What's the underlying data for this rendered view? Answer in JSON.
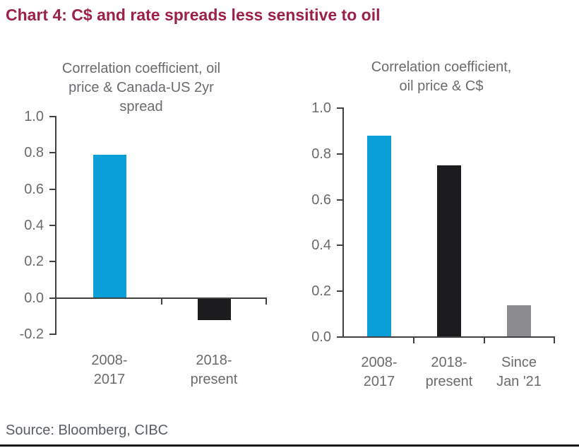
{
  "page": {
    "title": "Chart 4: C$ and rate spreads less sensitive to oil",
    "source": "Source: Bloomberg, CIBC"
  },
  "colors": {
    "headline": "#9b2145",
    "chart_text": "#6a6b6e",
    "axis": "#414144",
    "bar_blue": "#0a9fd9",
    "bar_black": "#1c1c1e",
    "bar_gray": "#8c8c8e",
    "bottom_rule": "#161616"
  },
  "chart_data": [
    {
      "type": "bar",
      "title": "Correlation coefficient, oil price & Canada-US 2yr spread",
      "title_lines": [
        "Correlation coefficient, oil",
        "price & Canada-US 2yr",
        "spread"
      ],
      "categories": [
        "2008-\n2017",
        "2018-\npresent"
      ],
      "values": [
        0.79,
        -0.12
      ],
      "bar_colors": [
        "#0a9fd9",
        "#1c1c1e"
      ],
      "xlabel": "",
      "ylabel": "",
      "ylim": [
        -0.2,
        1.0
      ],
      "ytick_step": 0.2,
      "ytick_labels": [
        "1.0",
        "0.8",
        "0.6",
        "0.4",
        "0.2",
        "0.0",
        "-0.2"
      ],
      "grid": false,
      "legend": "none"
    },
    {
      "type": "bar",
      "title": "Correlation coefficient, oil price & C$",
      "title_lines": [
        "Correlation coefficient,",
        "oil price & C$"
      ],
      "categories": [
        "2008-\n2017",
        "2018-\npresent",
        "Since\nJan '21"
      ],
      "values": [
        0.88,
        0.75,
        0.14
      ],
      "bar_colors": [
        "#0a9fd9",
        "#1c1c1e",
        "#8c8c8e"
      ],
      "xlabel": "",
      "ylabel": "",
      "ylim": [
        0.0,
        1.0
      ],
      "ytick_step": 0.2,
      "ytick_labels": [
        "1.0",
        "0.8",
        "0.6",
        "0.4",
        "0.2",
        "0.0"
      ],
      "grid": false,
      "legend": "none"
    }
  ]
}
